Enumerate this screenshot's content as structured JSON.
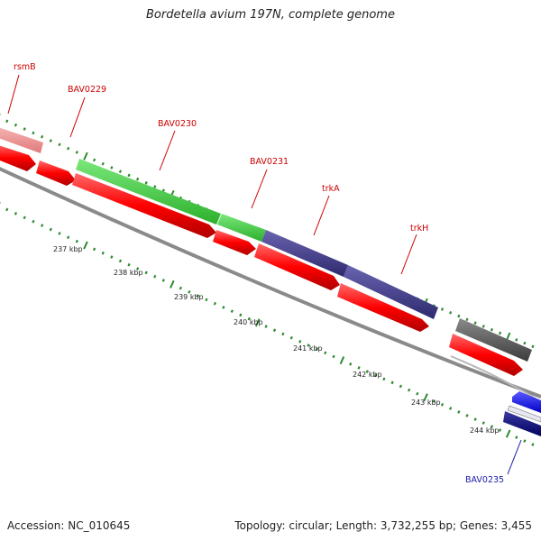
{
  "title": "Bordetella avium 197N, complete genome",
  "footer": {
    "accession": "Accession: NC_010645",
    "summary": "Topology: circular; Length: 3,732,255 bp; Genes: 3,455"
  },
  "gene_labels": [
    {
      "name": "rsmB",
      "color": "#cc0000"
    },
    {
      "name": "BAV0229",
      "color": "#cc0000"
    },
    {
      "name": "BAV0230",
      "color": "#cc0000"
    },
    {
      "name": "BAV0231",
      "color": "#cc0000"
    },
    {
      "name": "trkA",
      "color": "#cc0000"
    },
    {
      "name": "trkH",
      "color": "#cc0000"
    },
    {
      "name": "BAV0235",
      "color": "#1a1aa6"
    }
  ],
  "scale_labels": [
    "237 kbp",
    "238 kbp",
    "239 kbp",
    "240 kbp",
    "241 kbp",
    "242 kbp",
    "243 kbp",
    "244 kbp"
  ],
  "colors": {
    "cds": "#ff0000",
    "rsmB": "#f08c8c",
    "BAV0230": "#3fcf3f",
    "trkA_trkH": "#443d8c",
    "grey_feature": "#5a5a5a",
    "blue_feature": "#0000ff",
    "navy_feature": "#000080",
    "backbone": "#8a8a8a",
    "tick": "#2e8b2e"
  }
}
